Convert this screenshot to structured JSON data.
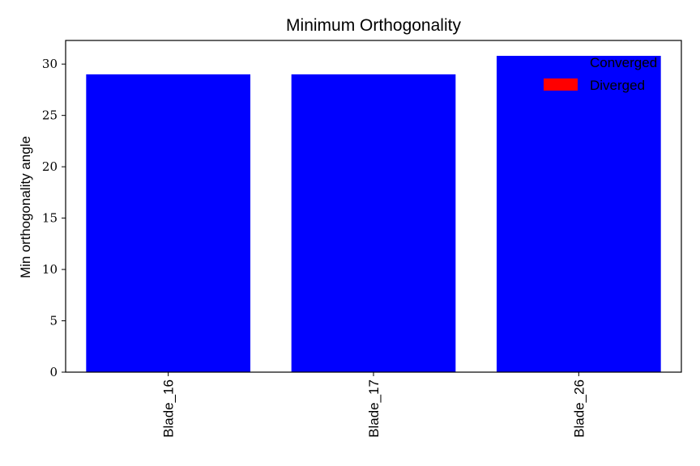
{
  "chart_data": {
    "type": "bar",
    "title": "Minimum Orthogonality",
    "xlabel": "",
    "ylabel": "Min orthogonality angle",
    "categories": [
      "Blade_16",
      "Blade_17",
      "Blade_26"
    ],
    "values": [
      29.0,
      29.0,
      30.8
    ],
    "bar_colors": [
      "#0000ff",
      "#0000ff",
      "#0000ff"
    ],
    "ylim": [
      0,
      32.3
    ],
    "yticks": [
      0,
      5,
      10,
      15,
      20,
      25,
      30
    ],
    "grid": false,
    "legend": {
      "placement": "top-right",
      "entries": [
        {
          "label": "Converged",
          "color": "#0000ff"
        },
        {
          "label": "Diverged",
          "color": "#ff0000"
        }
      ]
    }
  }
}
